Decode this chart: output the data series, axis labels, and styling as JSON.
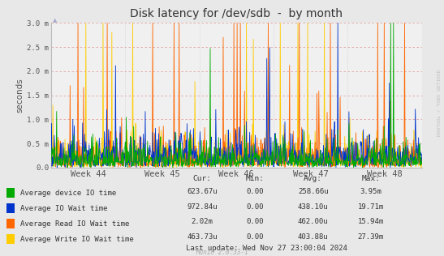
{
  "title": "Disk latency for /dev/sdb  -  by month",
  "ylabel": "seconds",
  "ytick_labels": [
    "0.0",
    "0.5 m",
    "1.0 m",
    "1.5 m",
    "2.0 m",
    "2.5 m",
    "3.0 m"
  ],
  "ytick_values": [
    0.0,
    0.0005,
    0.001,
    0.0015,
    0.002,
    0.0025,
    0.003
  ],
  "ymax": 0.003,
  "xtick_labels": [
    "Week 44",
    "Week 45",
    "Week 46",
    "Week 47",
    "Week 48"
  ],
  "bg_color": "#e8e8e8",
  "plot_bg_color": "#f0f0f0",
  "grid_color_h": "#e08080",
  "grid_color_v": "#c8c8d8",
  "colors": {
    "device_io": "#00aa00",
    "io_wait": "#0033cc",
    "read_io_wait": "#ff6600",
    "write_io_wait": "#ffcc00"
  },
  "legend": [
    {
      "label": "Average device IO time",
      "color": "#00aa00",
      "cur": "623.67u",
      "min": "0.00",
      "avg": "258.66u",
      "max": "3.95m"
    },
    {
      "label": "Average IO Wait time",
      "color": "#0033cc",
      "cur": "972.84u",
      "min": "0.00",
      "avg": "438.10u",
      "max": "19.71m"
    },
    {
      "label": "Average Read IO Wait time",
      "color": "#ff6600",
      "cur": "2.02m",
      "min": "0.00",
      "avg": "462.00u",
      "max": "15.94m"
    },
    {
      "label": "Average Write IO Wait time",
      "color": "#ffcc00",
      "cur": "463.73u",
      "min": "0.00",
      "avg": "403.88u",
      "max": "27.39m"
    }
  ],
  "footer": "Munin 2.0.33-1",
  "last_update": "Last update: Wed Nov 27 23:00:04 2024",
  "watermark": "RRDTOOL / TOBI OETIKER",
  "n_points": 800
}
